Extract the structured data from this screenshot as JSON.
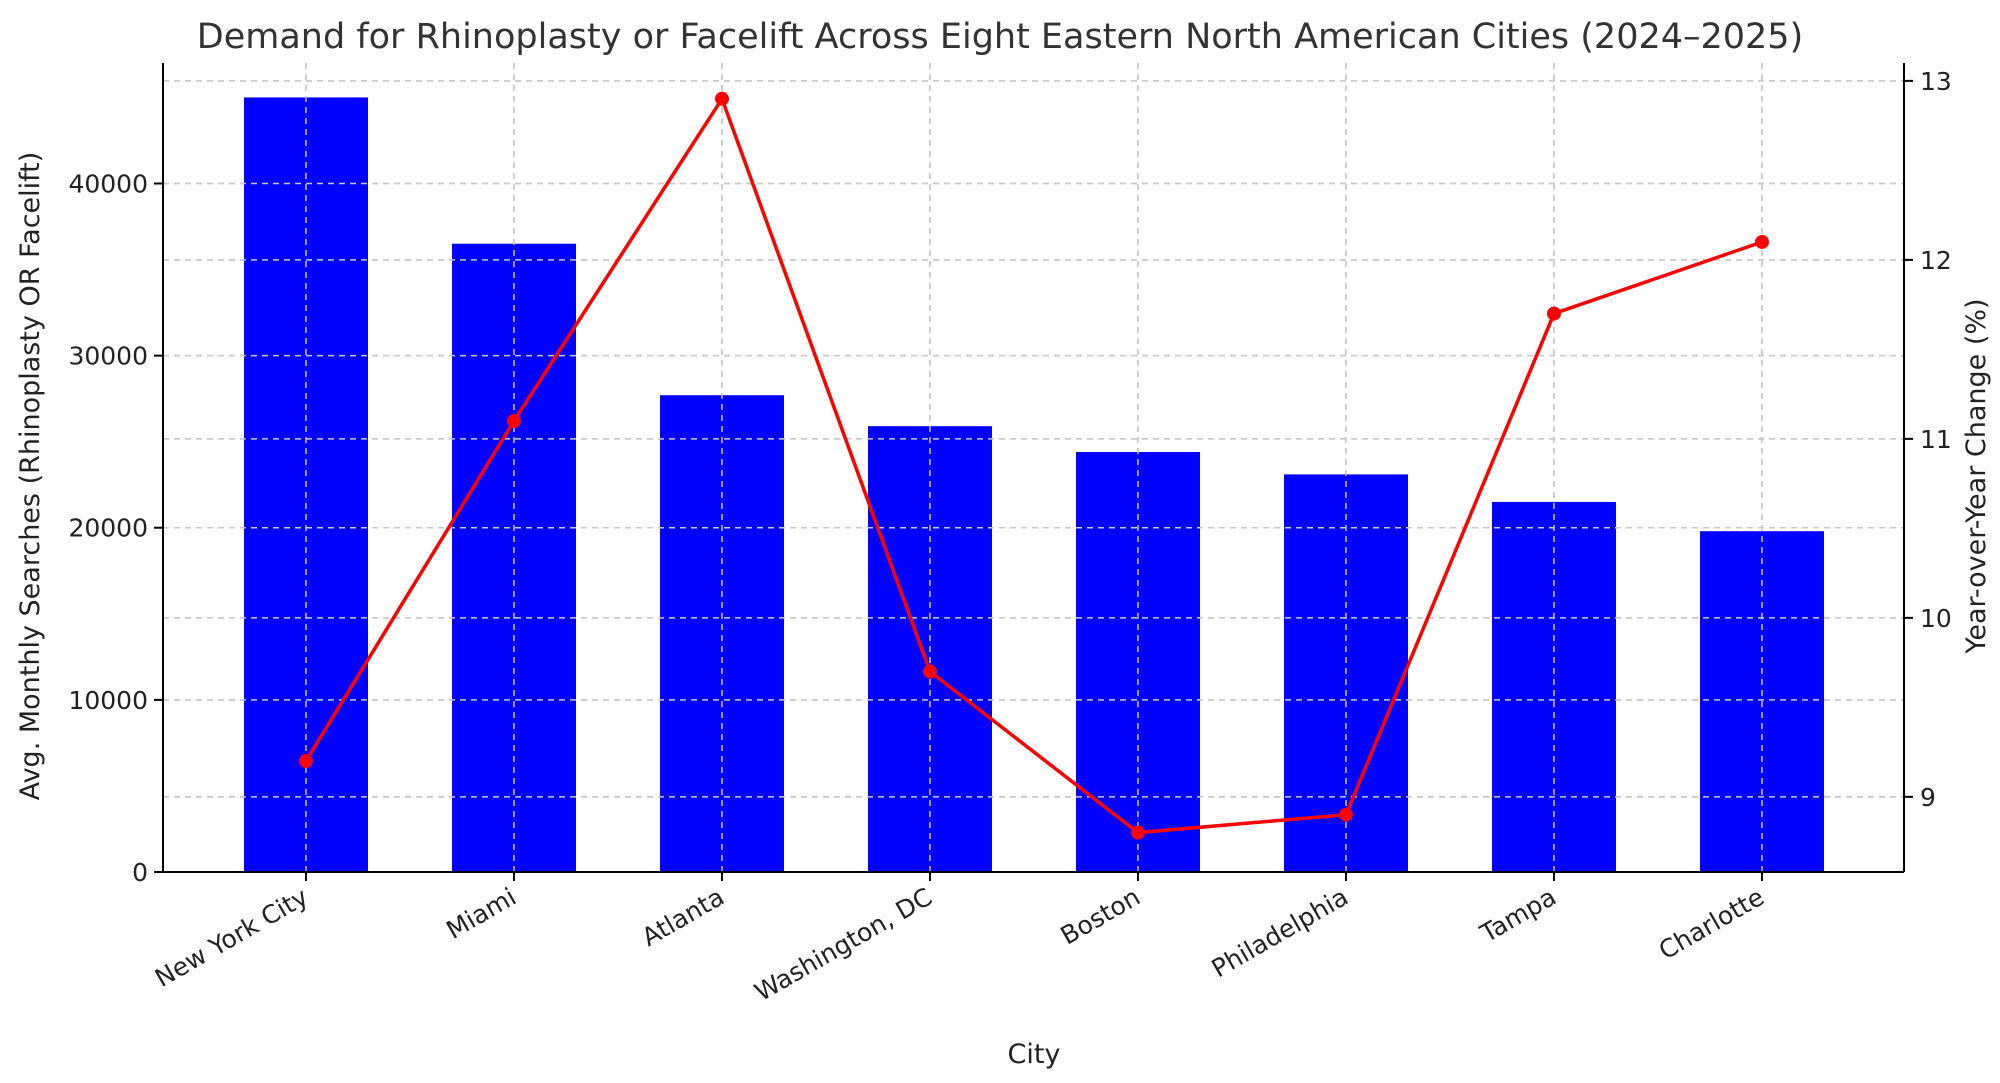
{
  "chart_data": {
    "type": "bar",
    "title": "Demand for Rhinoplasty or Facelift Across Eight Eastern North American Cities (2024–2025)",
    "xlabel": "City",
    "ylabel": "Avg. Monthly Searches (Rhinoplasty OR Facelift)",
    "y2label": "Year-over-Year Change (%)",
    "categories": [
      "New York City",
      "Miami",
      "Atlanta",
      "Washington, DC",
      "Boston",
      "Philadelphia",
      "Tampa",
      "Charlotte"
    ],
    "series": [
      {
        "kind": "bar",
        "axis": "left",
        "color": "#0000ff",
        "values": [
          45000,
          36500,
          27700,
          25900,
          24400,
          23100,
          21500,
          19800
        ]
      },
      {
        "kind": "line",
        "axis": "right",
        "color": "#ff0000",
        "values": [
          9.2,
          11.1,
          12.9,
          9.7,
          8.8,
          8.9,
          11.7,
          12.1
        ]
      }
    ],
    "ylim": [
      0,
      47000
    ],
    "y2lim": [
      8.58,
      13.1
    ],
    "yticks": [
      0,
      10000,
      20000,
      30000,
      40000
    ],
    "y2ticks": [
      9,
      10,
      11,
      12,
      13
    ],
    "grid": true,
    "legend": "none"
  }
}
